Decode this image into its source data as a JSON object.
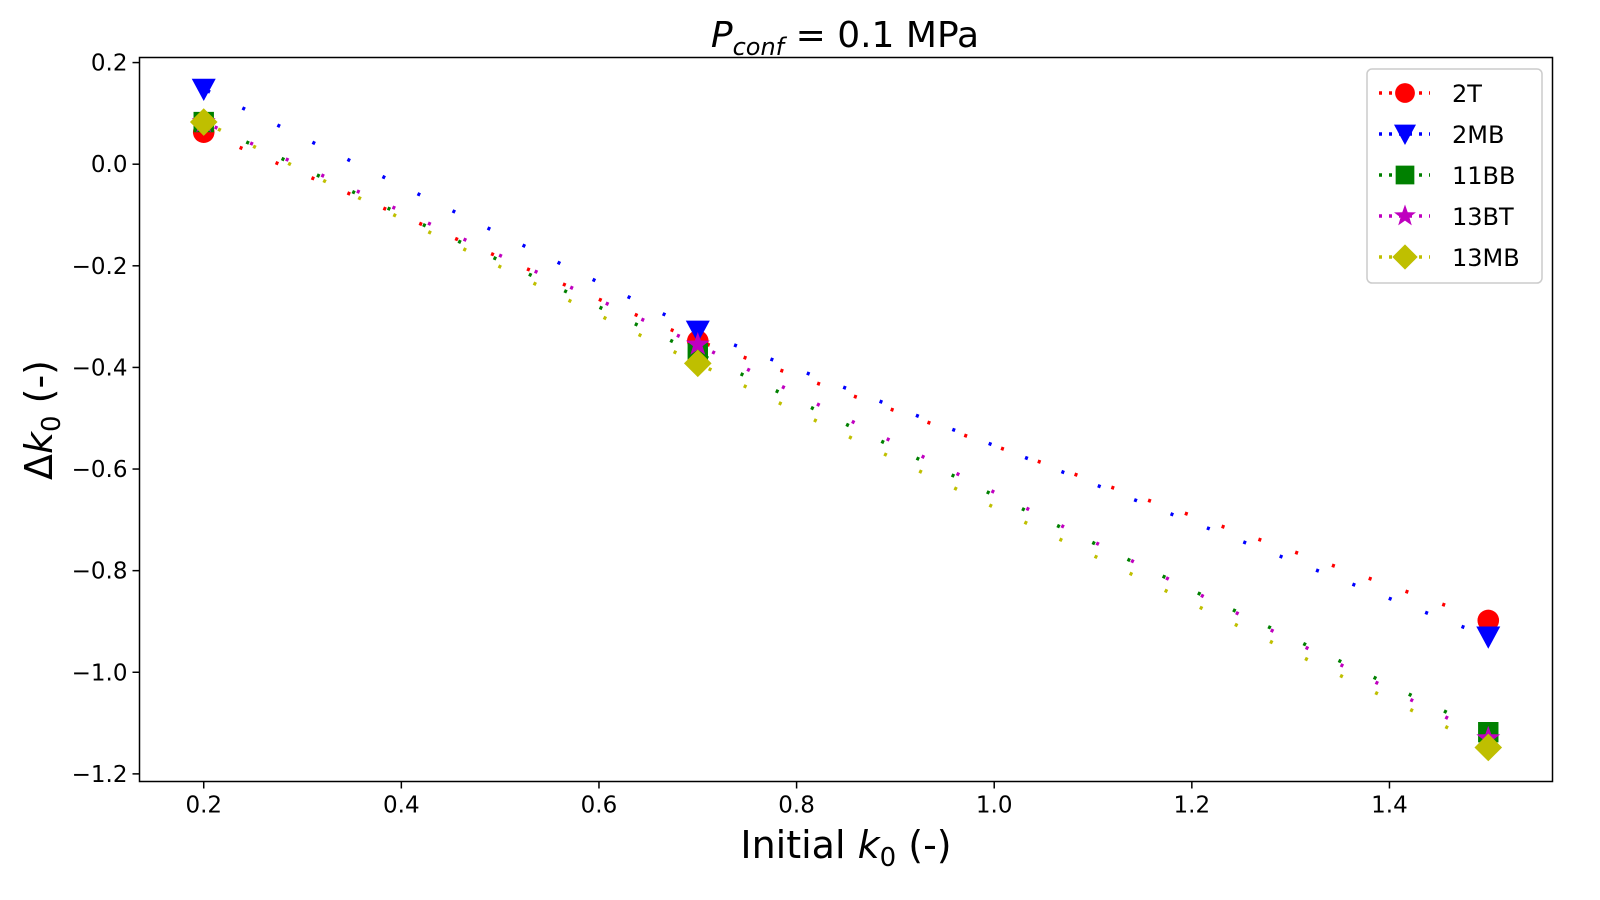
{
  "chart_data": {
    "type": "line",
    "title": "P_conf = 0.1 MPa",
    "title_parts": {
      "symbol": "P",
      "subscript": "conf",
      "rest": " = 0.1 MPa"
    },
    "xlabel": "Initial k0 (-)",
    "xlabel_parts": {
      "prefix": "Initial ",
      "symbol": "k",
      "subscript": "0",
      "suffix": " (-)"
    },
    "ylabel": "Δk0 (-)",
    "ylabel_parts": {
      "prefix": "Δ",
      "symbol": "k",
      "subscript": "0",
      "suffix": " (-)"
    },
    "xlim": [
      0.135,
      1.565
    ],
    "ylim": [
      -1.215,
      0.21
    ],
    "xticks": [
      0.2,
      0.4,
      0.6,
      0.8,
      1.0,
      1.2,
      1.4
    ],
    "xtick_labels": [
      "0.2",
      "0.4",
      "0.6",
      "0.8",
      "1.0",
      "1.2",
      "1.4"
    ],
    "yticks": [
      0.2,
      0.0,
      -0.2,
      -0.4,
      -0.6,
      -0.8,
      -1.0,
      -1.2
    ],
    "ytick_labels": [
      "0.2",
      "0.0",
      "−0.2",
      "−0.4",
      "−0.6",
      "−0.8",
      "−1.0",
      "−1.2"
    ],
    "grid": false,
    "legend_position": "top-right",
    "line_style": "dotted",
    "x": [
      0.2,
      0.7,
      1.5
    ],
    "series": [
      {
        "name": "2T",
        "values": [
          0.063,
          -0.348,
          -0.898
        ],
        "color": "#ff0000",
        "marker": "circle"
      },
      {
        "name": "2MB",
        "values": [
          0.148,
          -0.328,
          -0.93
        ],
        "color": "#0000ff",
        "marker": "triangle-down"
      },
      {
        "name": "11BB",
        "values": [
          0.083,
          -0.372,
          -1.118
        ],
        "color": "#008000",
        "marker": "square"
      },
      {
        "name": "13BT",
        "values": [
          0.083,
          -0.355,
          -1.13
        ],
        "color": "#bf00bf",
        "marker": "star"
      },
      {
        "name": "13MB",
        "values": [
          0.083,
          -0.392,
          -1.148
        ],
        "color": "#bfbf00",
        "marker": "diamond"
      }
    ]
  }
}
